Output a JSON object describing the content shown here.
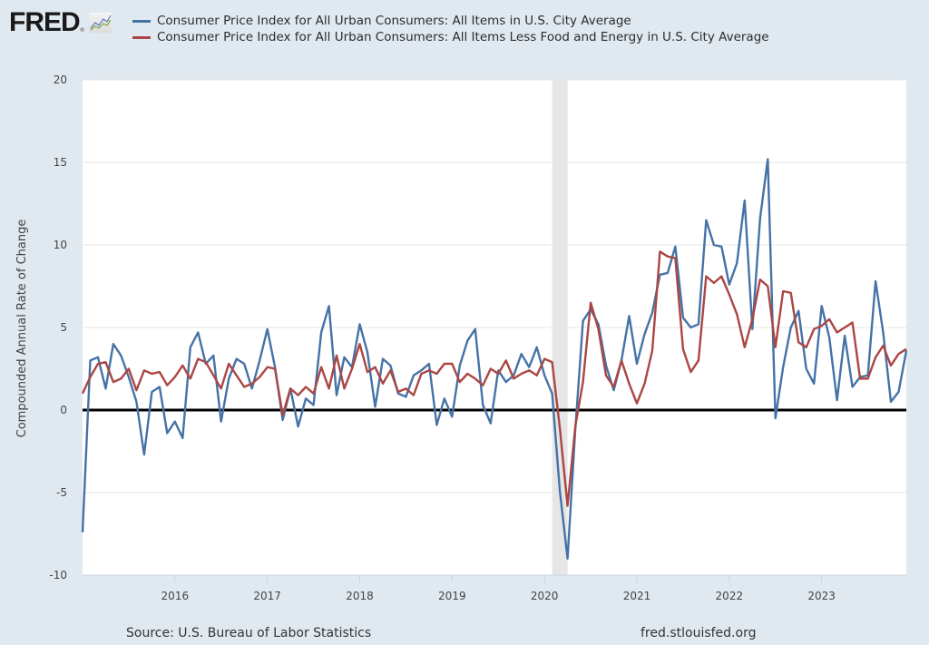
{
  "header": {
    "logo_text": "FRED",
    "logo_reg": "®",
    "logo_icon": "chart-line-icon"
  },
  "colors": {
    "series_all_items": "#4572a7",
    "series_core": "#aa4643",
    "background": "#e1e9f0",
    "plot_background": "#ffffff",
    "recession_band": "#e6e6e6",
    "gridline": "#e6e6e6",
    "zero_line": "#000000"
  },
  "footer": {
    "source": "Source: U.S. Bureau of Labor Statistics",
    "url": "fred.stlouisfed.org"
  },
  "chart_data": {
    "type": "line",
    "title": "",
    "xlabel": "",
    "ylabel": "Compounded Annual Rate of Change",
    "ylim": [
      -10,
      20
    ],
    "yticks": [
      -10,
      -5,
      0,
      5,
      10,
      15,
      20
    ],
    "ytick_labels": [
      "-10",
      "-5",
      "0",
      "5",
      "10",
      "15",
      "20"
    ],
    "x_range": [
      "2015-01",
      "2023-12"
    ],
    "xtick_labels": [
      "2016",
      "2017",
      "2018",
      "2019",
      "2020",
      "2021",
      "2022",
      "2023"
    ],
    "x_frequency": "monthly",
    "grid": "horizontal",
    "reference_line": 0,
    "legend_placement": "top",
    "recessions": [
      {
        "start": "2020-02",
        "end": "2020-04"
      }
    ],
    "x": [
      "2015-01",
      "2015-02",
      "2015-03",
      "2015-04",
      "2015-05",
      "2015-06",
      "2015-07",
      "2015-08",
      "2015-09",
      "2015-10",
      "2015-11",
      "2015-12",
      "2016-01",
      "2016-02",
      "2016-03",
      "2016-04",
      "2016-05",
      "2016-06",
      "2016-07",
      "2016-08",
      "2016-09",
      "2016-10",
      "2016-11",
      "2016-12",
      "2017-01",
      "2017-02",
      "2017-03",
      "2017-04",
      "2017-05",
      "2017-06",
      "2017-07",
      "2017-08",
      "2017-09",
      "2017-10",
      "2017-11",
      "2017-12",
      "2018-01",
      "2018-02",
      "2018-03",
      "2018-04",
      "2018-05",
      "2018-06",
      "2018-07",
      "2018-08",
      "2018-09",
      "2018-10",
      "2018-11",
      "2018-12",
      "2019-01",
      "2019-02",
      "2019-03",
      "2019-04",
      "2019-05",
      "2019-06",
      "2019-07",
      "2019-08",
      "2019-09",
      "2019-10",
      "2019-11",
      "2019-12",
      "2020-01",
      "2020-02",
      "2020-03",
      "2020-04",
      "2020-05",
      "2020-06",
      "2020-07",
      "2020-08",
      "2020-09",
      "2020-10",
      "2020-11",
      "2020-12",
      "2021-01",
      "2021-02",
      "2021-03",
      "2021-04",
      "2021-05",
      "2021-06",
      "2021-07",
      "2021-08",
      "2021-09",
      "2021-10",
      "2021-11",
      "2021-12",
      "2022-01",
      "2022-02",
      "2022-03",
      "2022-04",
      "2022-05",
      "2022-06",
      "2022-07",
      "2022-08",
      "2022-09",
      "2022-10",
      "2022-11",
      "2022-12",
      "2023-01",
      "2023-02",
      "2023-03",
      "2023-04",
      "2023-05",
      "2023-06",
      "2023-07",
      "2023-08",
      "2023-09",
      "2023-10",
      "2023-11",
      "2023-12"
    ],
    "series": [
      {
        "name": "Consumer Price Index for All Urban Consumers: All Items in U.S. City Average",
        "color": "#4572a7",
        "values": [
          -7.4,
          3.0,
          3.2,
          1.3,
          4.0,
          3.3,
          2.0,
          0.5,
          -2.7,
          1.1,
          1.4,
          -1.4,
          -0.7,
          -1.7,
          3.8,
          4.7,
          2.8,
          3.3,
          -0.7,
          1.9,
          3.1,
          2.8,
          1.3,
          3.0,
          4.9,
          2.6,
          -0.6,
          1.3,
          -1.0,
          0.7,
          0.3,
          4.7,
          6.3,
          0.9,
          3.2,
          2.6,
          5.2,
          3.5,
          0.2,
          3.1,
          2.7,
          1.0,
          0.8,
          2.1,
          2.4,
          2.8,
          -0.9,
          0.7,
          -0.4,
          2.7,
          4.2,
          4.9,
          0.3,
          -0.8,
          2.4,
          1.7,
          2.1,
          3.4,
          2.6,
          3.8,
          2.1,
          1.0,
          -4.9,
          -9.0,
          -1.2,
          5.4,
          6.1,
          5.2,
          2.7,
          1.2,
          3.0,
          5.7,
          2.8,
          4.6,
          5.9,
          8.2,
          8.3,
          9.9,
          5.6,
          5.0,
          5.2,
          11.5,
          10.0,
          9.9,
          7.6,
          8.9,
          12.7,
          4.9,
          11.6,
          15.2,
          -0.5,
          2.6,
          5.0,
          6.0,
          2.5,
          1.6,
          6.3,
          4.4,
          0.6,
          4.5,
          1.4,
          2.0,
          2.1,
          7.8,
          4.7,
          0.5,
          1.1,
          3.6
        ]
      },
      {
        "name": "Consumer Price Index for All Urban Consumers: All Items Less Food and Energy in U.S. City Average",
        "color": "#aa4643",
        "values": [
          1.0,
          2.0,
          2.8,
          2.9,
          1.7,
          1.9,
          2.5,
          1.2,
          2.4,
          2.2,
          2.3,
          1.5,
          2.0,
          2.7,
          1.9,
          3.1,
          2.9,
          2.1,
          1.3,
          2.8,
          2.1,
          1.4,
          1.6,
          2.0,
          2.6,
          2.5,
          -0.3,
          1.3,
          0.9,
          1.4,
          1.0,
          2.6,
          1.3,
          3.3,
          1.3,
          2.5,
          4.0,
          2.3,
          2.6,
          1.6,
          2.4,
          1.1,
          1.3,
          0.9,
          2.2,
          2.4,
          2.2,
          2.8,
          2.8,
          1.7,
          2.2,
          1.9,
          1.5,
          2.5,
          2.2,
          3.0,
          1.9,
          2.2,
          2.4,
          2.1,
          3.1,
          2.9,
          -1.1,
          -5.8,
          -1.0,
          1.7,
          6.5,
          4.9,
          2.1,
          1.4,
          3.0,
          1.6,
          0.4,
          1.6,
          3.6,
          9.6,
          9.3,
          9.2,
          3.7,
          2.3,
          3.0,
          8.1,
          7.7,
          8.1,
          7.0,
          5.8,
          3.8,
          5.5,
          7.9,
          7.5,
          3.8,
          7.2,
          7.1,
          4.1,
          3.8,
          4.9,
          5.1,
          5.5,
          4.7,
          5.0,
          5.3,
          1.9,
          1.9,
          3.2,
          3.9,
          2.7,
          3.4,
          3.7
        ]
      }
    ]
  }
}
